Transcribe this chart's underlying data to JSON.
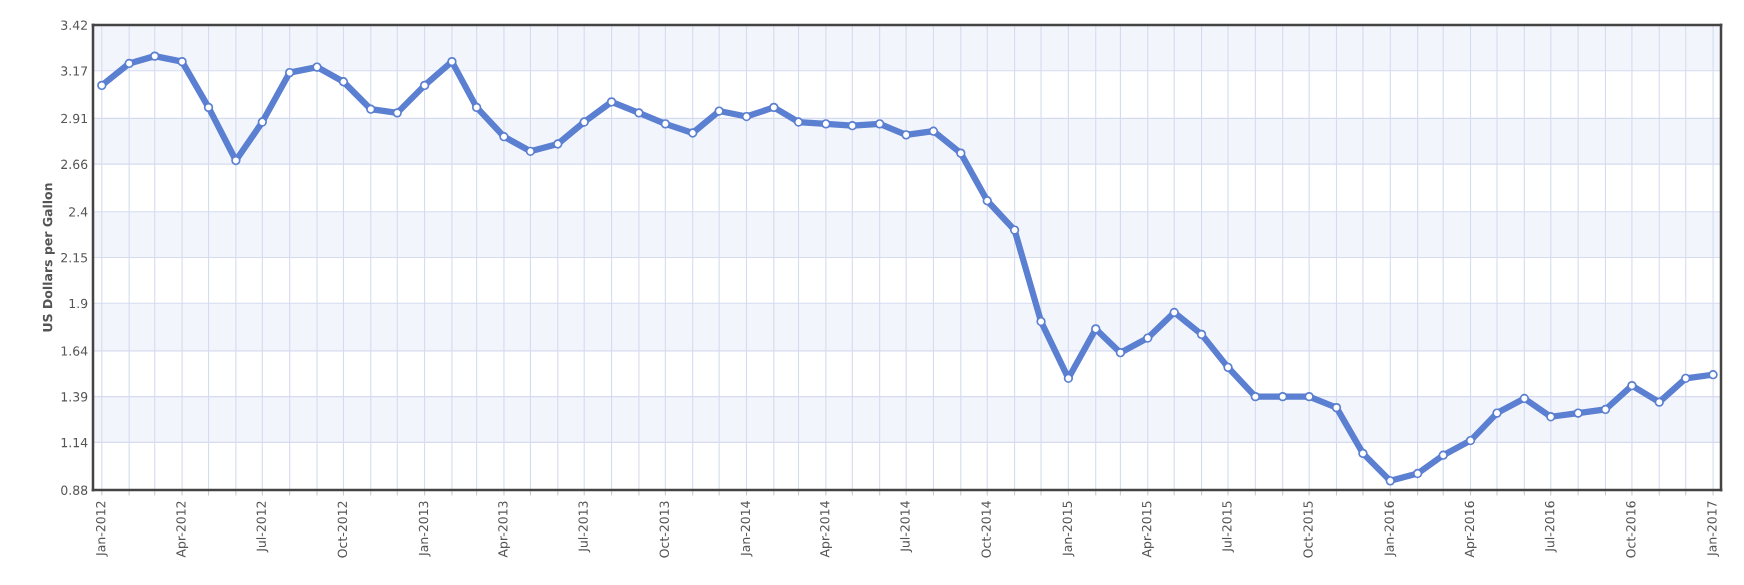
{
  "chart_data": {
    "type": "line",
    "ylabel": "US Dollars per Gallon",
    "x": [
      "2012-01",
      "2012-02",
      "2012-03",
      "2012-04",
      "2012-05",
      "2012-06",
      "2012-07",
      "2012-08",
      "2012-09",
      "2012-10",
      "2012-11",
      "2012-12",
      "2013-01",
      "2013-02",
      "2013-03",
      "2013-04",
      "2013-05",
      "2013-06",
      "2013-07",
      "2013-08",
      "2013-09",
      "2013-10",
      "2013-11",
      "2013-12",
      "2014-01",
      "2014-02",
      "2014-03",
      "2014-04",
      "2014-05",
      "2014-06",
      "2014-07",
      "2014-08",
      "2014-09",
      "2014-10",
      "2014-11",
      "2014-12",
      "2015-01",
      "2015-02",
      "2015-03",
      "2015-04",
      "2015-05",
      "2015-06",
      "2015-07",
      "2015-08",
      "2015-09",
      "2015-10",
      "2015-11",
      "2015-12",
      "2016-01",
      "2016-02",
      "2016-03",
      "2016-04",
      "2016-05",
      "2016-06",
      "2016-07",
      "2016-08",
      "2016-09",
      "2016-10",
      "2016-11",
      "2016-12",
      "2017-01"
    ],
    "series": [
      {
        "color": "#5b7fd1",
        "values": [
          3.09,
          3.21,
          3.25,
          3.22,
          2.97,
          2.68,
          2.89,
          3.16,
          3.19,
          3.11,
          2.96,
          2.94,
          3.09,
          3.22,
          2.97,
          2.81,
          2.73,
          2.77,
          2.89,
          3.0,
          2.94,
          2.88,
          2.83,
          2.95,
          2.92,
          2.97,
          2.89,
          2.88,
          2.87,
          2.88,
          2.82,
          2.84,
          2.72,
          2.46,
          2.3,
          1.8,
          1.49,
          1.76,
          1.63,
          1.71,
          1.85,
          1.73,
          1.55,
          1.39,
          1.39,
          1.39,
          1.33,
          1.08,
          0.93,
          0.97,
          1.07,
          1.15,
          1.3,
          1.38,
          1.28,
          1.3,
          1.32,
          1.45,
          1.36,
          1.49,
          1.51
        ]
      }
    ],
    "xlim": [
      "2011-12-22",
      "2017-01-10"
    ],
    "xticks": [
      {
        "value": "2012-01",
        "label": "Jan-2012"
      },
      {
        "value": "2012-02",
        "label": null
      },
      {
        "value": "2012-03",
        "label": null
      },
      {
        "value": "2012-04",
        "label": "Apr-2012"
      },
      {
        "value": "2012-05",
        "label": null
      },
      {
        "value": "2012-06",
        "label": null
      },
      {
        "value": "2012-07",
        "label": "Jul-2012"
      },
      {
        "value": "2012-08",
        "label": null
      },
      {
        "value": "2012-09",
        "label": null
      },
      {
        "value": "2012-10",
        "label": "Oct-2012"
      },
      {
        "value": "2012-11",
        "label": null
      },
      {
        "value": "2012-12",
        "label": null
      },
      {
        "value": "2013-01",
        "label": "Jan-2013"
      },
      {
        "value": "2013-02",
        "label": null
      },
      {
        "value": "2013-03",
        "label": null
      },
      {
        "value": "2013-04",
        "label": "Apr-2013"
      },
      {
        "value": "2013-05",
        "label": null
      },
      {
        "value": "2013-06",
        "label": null
      },
      {
        "value": "2013-07",
        "label": "Jul-2013"
      },
      {
        "value": "2013-08",
        "label": null
      },
      {
        "value": "2013-09",
        "label": null
      },
      {
        "value": "2013-10",
        "label": "Oct-2013"
      },
      {
        "value": "2013-11",
        "label": null
      },
      {
        "value": "2013-12",
        "label": null
      },
      {
        "value": "2014-01",
        "label": "Jan-2014"
      },
      {
        "value": "2014-02",
        "label": null
      },
      {
        "value": "2014-03",
        "label": null
      },
      {
        "value": "2014-04",
        "label": "Apr-2014"
      },
      {
        "value": "2014-05",
        "label": null
      },
      {
        "value": "2014-06",
        "label": null
      },
      {
        "value": "2014-07",
        "label": "Jul-2014"
      },
      {
        "value": "2014-08",
        "label": null
      },
      {
        "value": "2014-09",
        "label": null
      },
      {
        "value": "2014-10",
        "label": "Oct-2014"
      },
      {
        "value": "2014-11",
        "label": null
      },
      {
        "value": "2014-12",
        "label": null
      },
      {
        "value": "2015-01",
        "label": "Jan-2015"
      },
      {
        "value": "2015-02",
        "label": null
      },
      {
        "value": "2015-03",
        "label": null
      },
      {
        "value": "2015-04",
        "label": "Apr-2015"
      },
      {
        "value": "2015-05",
        "label": null
      },
      {
        "value": "2015-06",
        "label": null
      },
      {
        "value": "2015-07",
        "label": "Jul-2015"
      },
      {
        "value": "2015-08",
        "label": null
      },
      {
        "value": "2015-09",
        "label": null
      },
      {
        "value": "2015-10",
        "label": "Oct-2015"
      },
      {
        "value": "2015-11",
        "label": null
      },
      {
        "value": "2015-12",
        "label": null
      },
      {
        "value": "2016-01",
        "label": "Jan-2016"
      },
      {
        "value": "2016-02",
        "label": null
      },
      {
        "value": "2016-03",
        "label": null
      },
      {
        "value": "2016-04",
        "label": "Apr-2016"
      },
      {
        "value": "2016-05",
        "label": null
      },
      {
        "value": "2016-06",
        "label": null
      },
      {
        "value": "2016-07",
        "label": "Jul-2016"
      },
      {
        "value": "2016-08",
        "label": null
      },
      {
        "value": "2016-09",
        "label": null
      },
      {
        "value": "2016-10",
        "label": "Oct-2016"
      },
      {
        "value": "2016-11",
        "label": null
      },
      {
        "value": "2016-12",
        "label": null
      },
      {
        "value": "2017-01",
        "label": "Jan-2017"
      }
    ],
    "ylim": [
      0.88,
      3.42
    ],
    "yticks": [
      0.88,
      1.14,
      1.39,
      1.64,
      1.9,
      2.15,
      2.4,
      2.66,
      2.91,
      3.17,
      3.42
    ],
    "bands": [
      {
        "axis": "y",
        "from": 1.14,
        "to": 1.39,
        "color": "#f2f5fc"
      },
      {
        "axis": "y",
        "from": 1.64,
        "to": 1.9,
        "color": "#f2f5fc"
      },
      {
        "axis": "y",
        "from": 2.15,
        "to": 2.4,
        "color": "#f2f5fc"
      },
      {
        "axis": "y",
        "from": 2.66,
        "to": 2.91,
        "color": "#f2f5fc"
      },
      {
        "axis": "y",
        "from": 3.17,
        "to": 3.42,
        "color": "#f2f5fc"
      }
    ],
    "grid": true,
    "marker": "circle",
    "line_style": "solid"
  }
}
